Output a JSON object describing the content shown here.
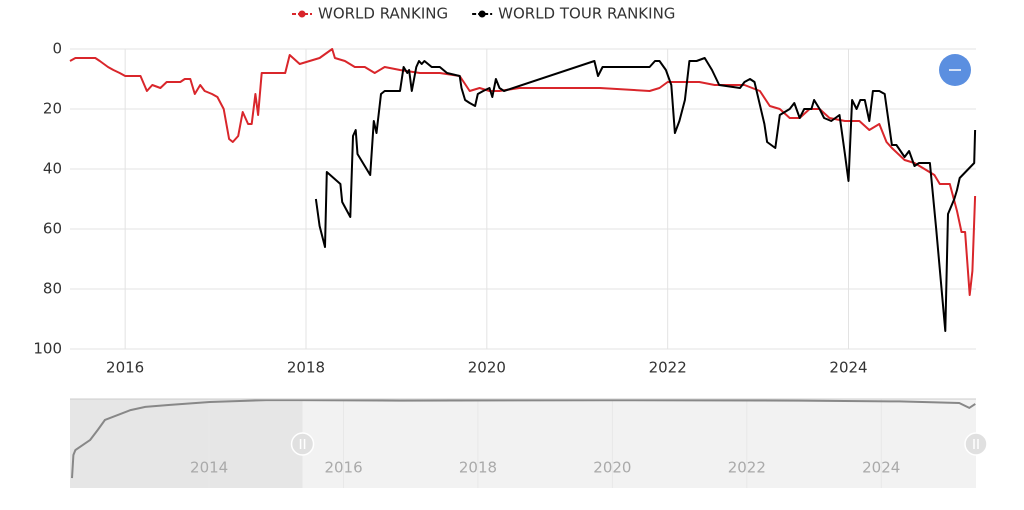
{
  "chart_data": {
    "type": "line",
    "xlim": [
      2015.39,
      2025.41
    ],
    "xticks": [
      2016,
      2018,
      2020,
      2022,
      2024
    ],
    "ylim": [
      100,
      0
    ],
    "yticks": [
      0,
      20,
      40,
      60,
      80,
      100
    ],
    "grid": true,
    "legend": "top",
    "series": [
      {
        "name": "WORLD RANKING",
        "color": "#d9262b",
        "x": [
          2015.39,
          2015.45,
          2015.67,
          2015.72,
          2015.81,
          2015.87,
          2015.94,
          2016.0,
          2016.17,
          2016.24,
          2016.3,
          2016.39,
          2016.46,
          2016.61,
          2016.66,
          2016.72,
          2016.77,
          2016.83,
          2016.88,
          2016.96,
          2017.02,
          2017.09,
          2017.15,
          2017.19,
          2017.25,
          2017.3,
          2017.36,
          2017.4,
          2017.44,
          2017.47,
          2017.51,
          2017.77,
          2017.82,
          2017.93,
          2018.04,
          2018.15,
          2018.29,
          2018.32,
          2018.43,
          2018.54,
          2018.65,
          2018.76,
          2018.87,
          2019.04,
          2019.26,
          2019.48,
          2019.7,
          2019.81,
          2019.92,
          2020.03,
          2020.14,
          2020.36,
          2021.25,
          2021.8,
          2021.91,
          2022.0,
          2022.35,
          2022.52,
          2022.69,
          2022.85,
          2023.02,
          2023.13,
          2023.24,
          2023.35,
          2023.46,
          2023.57,
          2023.68,
          2023.79,
          2023.96,
          2024.12,
          2024.23,
          2024.34,
          2024.42,
          2024.48,
          2024.62,
          2024.73,
          2024.84,
          2024.95,
          2025.01,
          2025.12,
          2025.2,
          2025.25,
          2025.29,
          2025.34,
          2025.37,
          2025.4
        ],
        "values": [
          4,
          3,
          3,
          4,
          6,
          7,
          8,
          9,
          9,
          14,
          12,
          13,
          11,
          11,
          10,
          10,
          15,
          12,
          14,
          15,
          16,
          20,
          30,
          31,
          29,
          21,
          25,
          25,
          15,
          22,
          8,
          8,
          2,
          5,
          4,
          3,
          0,
          3,
          4,
          6,
          6,
          8,
          6,
          7,
          8,
          8,
          9,
          14,
          13,
          14,
          14,
          13,
          13,
          14,
          13,
          11,
          11,
          12,
          12,
          12,
          14,
          19,
          20,
          23,
          23,
          20,
          20,
          23,
          24,
          24,
          27,
          25,
          31,
          33,
          37,
          38,
          40,
          42,
          45,
          45,
          54,
          61,
          61,
          82,
          74,
          49
        ]
      },
      {
        "name": "WORLD TOUR RANKING",
        "color": "#000000",
        "x": [
          2018.11,
          2018.15,
          2018.21,
          2018.23,
          2018.38,
          2018.4,
          2018.49,
          2018.52,
          2018.55,
          2018.57,
          2018.71,
          2018.75,
          2018.78,
          2018.83,
          2018.87,
          2019.04,
          2019.08,
          2019.12,
          2019.14,
          2019.17,
          2019.22,
          2019.25,
          2019.28,
          2019.31,
          2019.39,
          2019.48,
          2019.56,
          2019.7,
          2019.72,
          2019.76,
          2019.81,
          2019.87,
          2019.9,
          2019.96,
          2020.03,
          2020.06,
          2020.1,
          2020.14,
          2020.19,
          2021.19,
          2021.23,
          2021.28,
          2021.8,
          2021.86,
          2021.91,
          2021.98,
          2022.04,
          2022.08,
          2022.13,
          2022.19,
          2022.24,
          2022.32,
          2022.41,
          2022.49,
          2022.57,
          2022.8,
          2022.85,
          2022.91,
          2022.96,
          2023.07,
          2023.1,
          2023.19,
          2023.24,
          2023.35,
          2023.4,
          2023.46,
          2023.51,
          2023.59,
          2023.62,
          2023.68,
          2023.73,
          2023.81,
          2023.9,
          2023.96,
          2024.0,
          2024.04,
          2024.09,
          2024.13,
          2024.18,
          2024.23,
          2024.27,
          2024.34,
          2024.4,
          2024.48,
          2024.53,
          2024.62,
          2024.67,
          2024.73,
          2024.78,
          2024.9,
          2024.97,
          2025.07,
          2025.1,
          2025.17,
          2025.2,
          2025.23,
          2025.39,
          2025.4
        ],
        "values": [
          50,
          59,
          66,
          41,
          45,
          51,
          56,
          29,
          27,
          35,
          42,
          24,
          28,
          15,
          14,
          14,
          6,
          8,
          7,
          14,
          6,
          4,
          5,
          4,
          6,
          6,
          8,
          9,
          13,
          17,
          18,
          19,
          15,
          14,
          13,
          16,
          10,
          13,
          14,
          4,
          9,
          6,
          6,
          4,
          4,
          7,
          12,
          28,
          24,
          17,
          4,
          4,
          3,
          7,
          12,
          13,
          11,
          10,
          11,
          25,
          31,
          33,
          22,
          20,
          18,
          23,
          20,
          20,
          17,
          20,
          23,
          24,
          22,
          35,
          44,
          17,
          20,
          17,
          17,
          24,
          14,
          14,
          15,
          32,
          32,
          36,
          34,
          39,
          38,
          38,
          60,
          94,
          55,
          50,
          47,
          43,
          38,
          27
        ]
      }
    ],
    "navigator": {
      "xlim": [
        2011.93,
        2025.41
      ],
      "xticks": [
        2014,
        2016,
        2018,
        2020,
        2022,
        2024
      ],
      "ylim": [
        450,
        0
      ],
      "color": "#888888",
      "x": [
        2011.96,
        2011.98,
        2012.01,
        2012.23,
        2012.34,
        2012.45,
        2012.83,
        2013.05,
        2013.42,
        2014.01,
        2014.91,
        2016.84,
        2019.81,
        2022.78,
        2024.27,
        2025.16,
        2025.31,
        2025.4
      ],
      "values": [
        400,
        283,
        258,
        207,
        157,
        106,
        56,
        40,
        30,
        15,
        5,
        8,
        6,
        8,
        12,
        20,
        45,
        25
      ]
    }
  }
}
